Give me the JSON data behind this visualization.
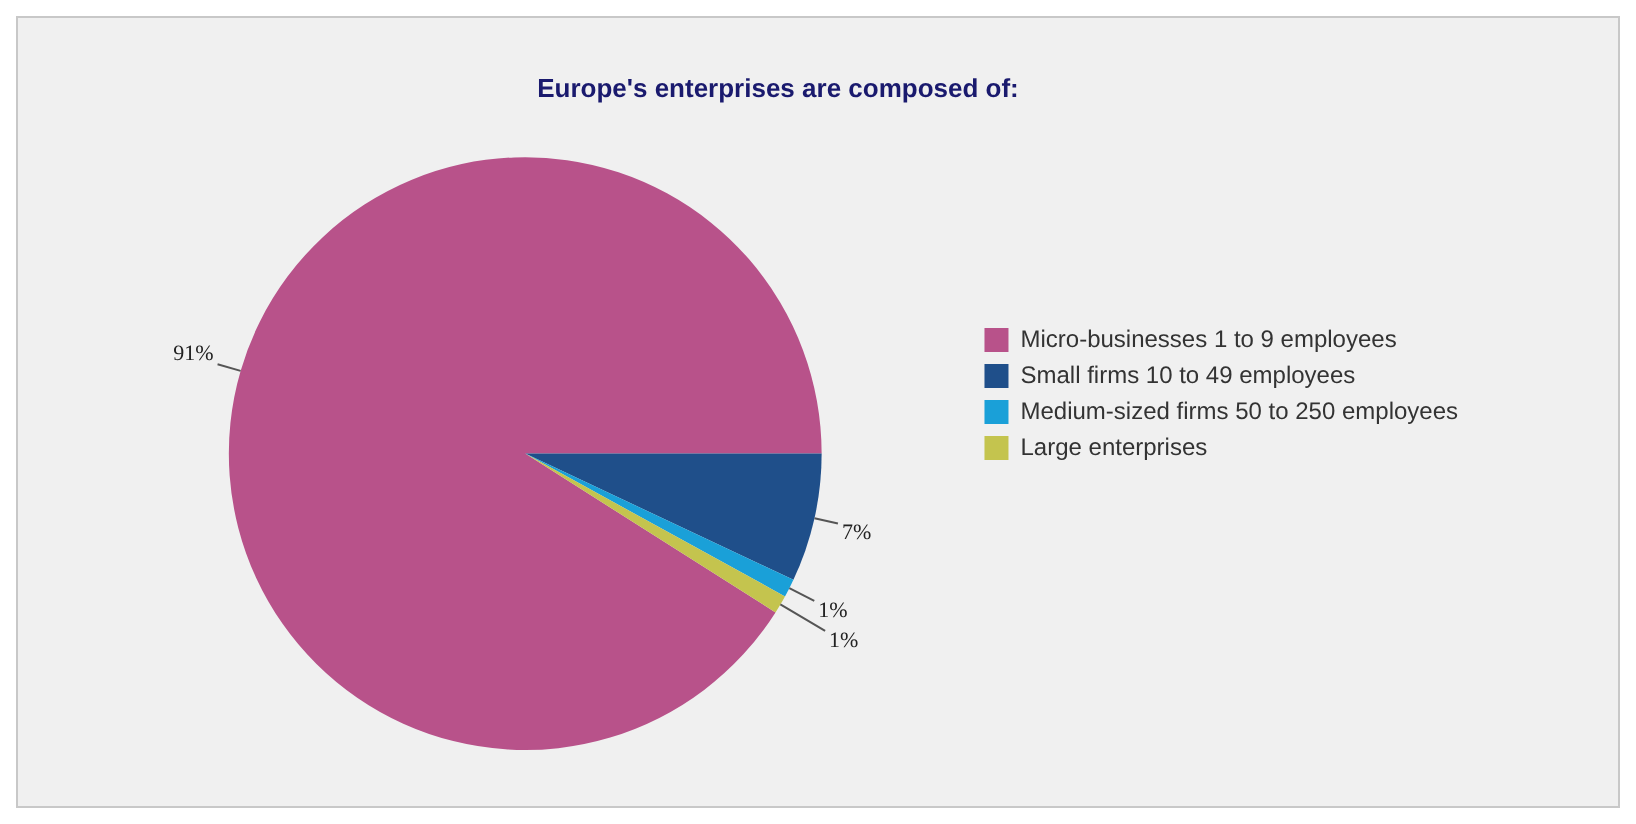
{
  "chart_data": {
    "type": "pie",
    "title": "Europe's enterprises are composed of:",
    "categories": [
      "Micro-businesses 1 to 9 employees",
      "Small firms 10 to 49 employees",
      "Medium-sized firms 50 to 250 employees",
      "Large enterprises"
    ],
    "values": [
      91,
      7,
      1,
      1
    ],
    "colors": [
      "#b8528a",
      "#1f4f8a",
      "#1aa0d8",
      "#c4c44e"
    ],
    "value_labels": [
      "91%",
      "7%",
      "1%",
      "1%"
    ],
    "legend": "right"
  }
}
